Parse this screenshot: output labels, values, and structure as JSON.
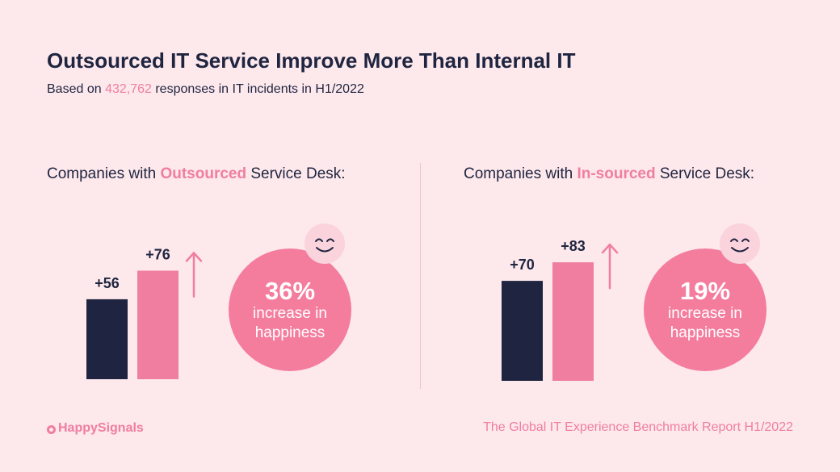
{
  "header": {
    "title": "Outsourced IT Service Improve More Than Internal IT",
    "subtitle_prefix": "Based on ",
    "subtitle_highlight": "432,762",
    "subtitle_suffix": " responses in IT incidents in H1/2022"
  },
  "colors": {
    "background": "#fde8ec",
    "navy": "#1f2540",
    "pink": "#f07ea0",
    "circle": "#f47d9e",
    "smiley_bg": "#fbd3dd"
  },
  "icons": [
    "up-arrow-icon",
    "smiley-icon",
    "happysignals-logo-icon"
  ],
  "chart_data": [
    {
      "type": "bar",
      "heading_prefix": "Companies with ",
      "heading_highlight": "Outsourced",
      "heading_suffix": " Service Desk:",
      "values": [
        56,
        76
      ],
      "value_labels": [
        "+56",
        "+76"
      ],
      "series_colors": [
        "#1f2540",
        "#f07ea0"
      ],
      "callout_value": "36%",
      "callout_line1": "increase in",
      "callout_line2": "happiness"
    },
    {
      "type": "bar",
      "heading_prefix": "Companies with ",
      "heading_highlight": "In-sourced",
      "heading_suffix": " Service Desk:",
      "values": [
        70,
        83
      ],
      "value_labels": [
        "+70",
        "+83"
      ],
      "series_colors": [
        "#1f2540",
        "#f07ea0"
      ],
      "callout_value": "19%",
      "callout_line1": "increase in",
      "callout_line2": "happiness"
    }
  ],
  "footer": {
    "brand": "HappySignals",
    "report": "The Global IT Experience Benchmark Report H1/2022"
  }
}
